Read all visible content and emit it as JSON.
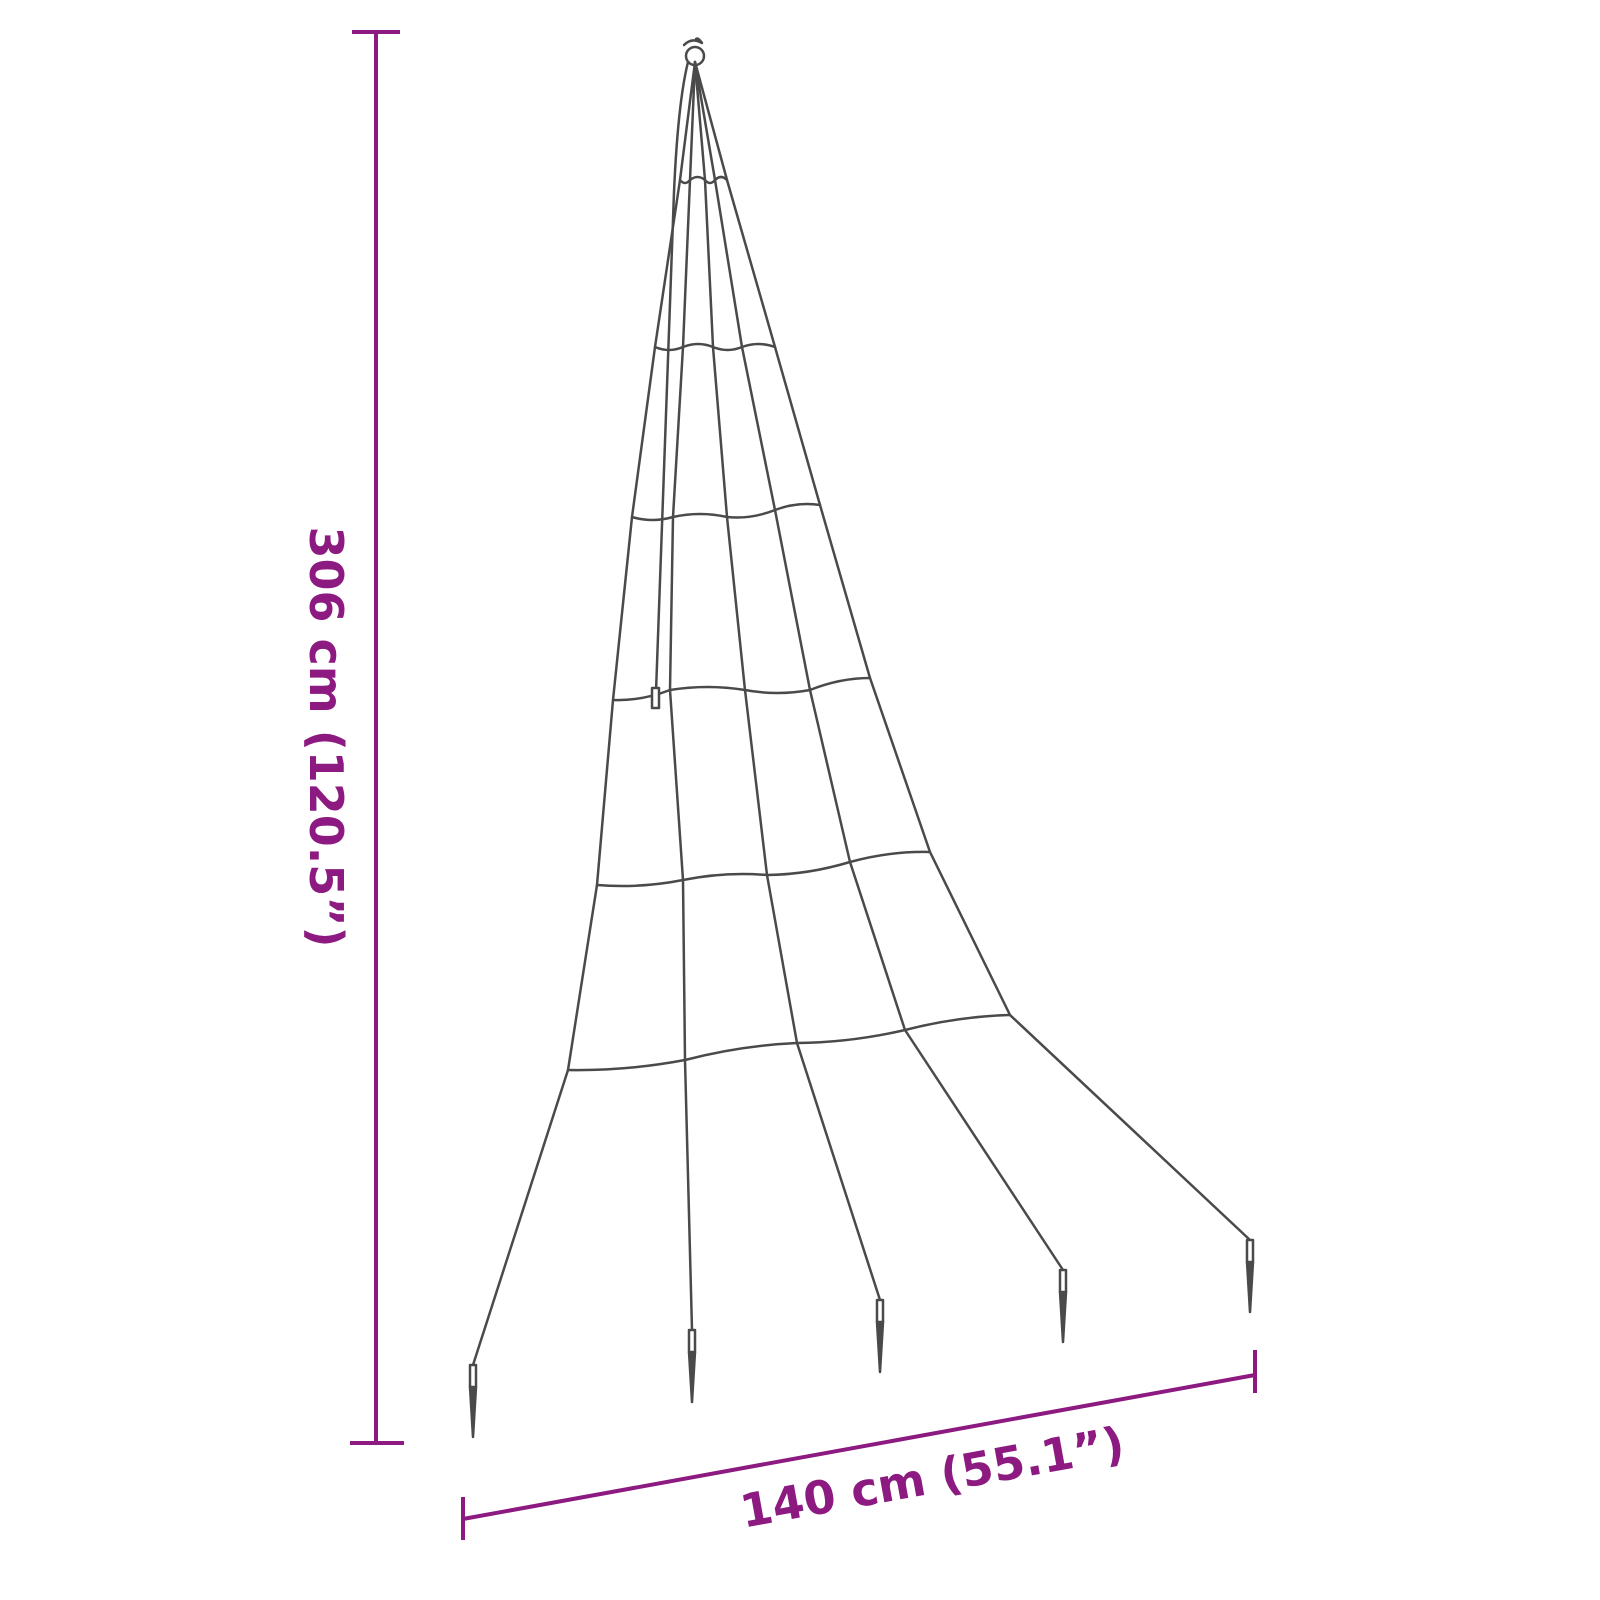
{
  "dimensions": {
    "height_label": "306 cm (120.5”)",
    "width_label": "140 cm (55.1”)"
  },
  "colors": {
    "dimension": "#8c1a80",
    "wire": "#4a4a4a",
    "background": "#ffffff"
  },
  "product": {
    "strand_count": 5,
    "ring_count": 6,
    "stake_count": 5
  }
}
